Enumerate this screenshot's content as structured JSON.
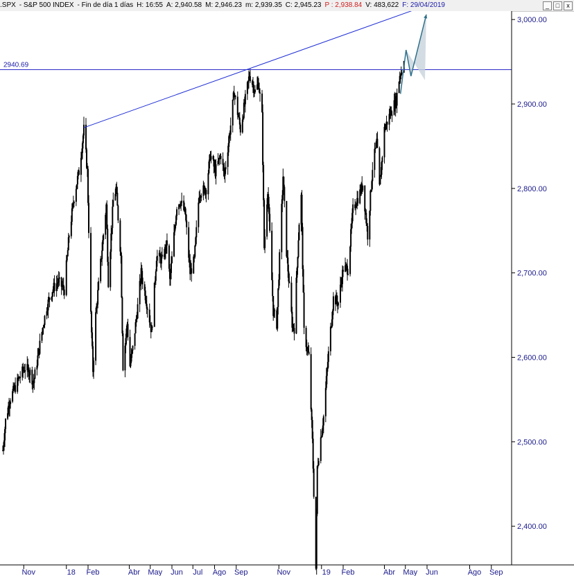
{
  "header": {
    "symbol": ".SPX",
    "name": "- S&P 500 INDEX",
    "period": "- Fin de día 1 días",
    "h": "H: 16:55",
    "a": "A: 2,940.58",
    "m": "M: 2,946.23",
    "mlow": "m: 2,939.35",
    "c": "C: 2,945.23",
    "p": "P : 2,938.84",
    "v": "V: 483,622",
    "f": "F: 29/04/2019"
  },
  "window_buttons": {
    "minimize": "_",
    "maximize": "□",
    "close": "x"
  },
  "colors": {
    "candles": "#000000",
    "axis": "#1a1a8c",
    "trendline": "#1f2fd6",
    "horizontal_line": "#2a2ac8",
    "projection": "#2e6f8a",
    "projection_fill": "#c8d3dc"
  },
  "chart_data": {
    "type": "candlestick",
    "title": ".SPX - S&P 500 INDEX",
    "ylim": [
      2355,
      3010
    ],
    "y_ticks": [
      {
        "v": 2400,
        "label": "2,400.00"
      },
      {
        "v": 2500,
        "label": "2,500.00"
      },
      {
        "v": 2600,
        "label": "2,600.00"
      },
      {
        "v": 2700,
        "label": "2,700.00"
      },
      {
        "v": 2800,
        "label": "2,800.00"
      },
      {
        "v": 2900,
        "label": "2,900.00"
      },
      {
        "v": 3000,
        "label": "3,000.00"
      }
    ],
    "x_range": [
      "2017-10-01",
      "2019-09-30"
    ],
    "x_ticks": [
      {
        "date": "2017-11-01",
        "label": "Nov"
      },
      {
        "date": "2018-01-01",
        "label": "18"
      },
      {
        "date": "2018-02-01",
        "label": "Feb"
      },
      {
        "date": "2018-04-01",
        "label": "Abr"
      },
      {
        "date": "2018-05-01",
        "label": "May"
      },
      {
        "date": "2018-06-01",
        "label": "Jun"
      },
      {
        "date": "2018-07-01",
        "label": "Jul"
      },
      {
        "date": "2018-08-01",
        "label": "Ago"
      },
      {
        "date": "2018-09-01",
        "label": "Sep"
      },
      {
        "date": "2018-11-01",
        "label": "Nov"
      },
      {
        "date": "2019-01-01",
        "label": "19"
      },
      {
        "date": "2019-02-01",
        "label": "Feb"
      },
      {
        "date": "2019-04-01",
        "label": "Abr"
      },
      {
        "date": "2019-05-01",
        "label": "May"
      },
      {
        "date": "2019-06-01",
        "label": "Jun"
      },
      {
        "date": "2019-08-01",
        "label": "Ago"
      },
      {
        "date": "2019-09-01",
        "label": "Sep"
      }
    ],
    "price_path": [
      [
        "2017-10-02",
        2490
      ],
      [
        "2017-10-06",
        2525
      ],
      [
        "2017-10-12",
        2550
      ],
      [
        "2017-10-20",
        2565
      ],
      [
        "2017-10-28",
        2580
      ],
      [
        "2017-11-03",
        2588
      ],
      [
        "2017-11-10",
        2582
      ],
      [
        "2017-11-15",
        2570
      ],
      [
        "2017-11-22",
        2605
      ],
      [
        "2017-11-28",
        2635
      ],
      [
        "2017-12-04",
        2660
      ],
      [
        "2017-12-12",
        2680
      ],
      [
        "2017-12-20",
        2690
      ],
      [
        "2017-12-29",
        2680
      ],
      [
        "2018-01-05",
        2745
      ],
      [
        "2018-01-12",
        2790
      ],
      [
        "2018-01-19",
        2820
      ],
      [
        "2018-01-26",
        2870
      ],
      [
        "2018-01-31",
        2820
      ],
      [
        "2018-02-05",
        2650
      ],
      [
        "2018-02-08",
        2585
      ],
      [
        "2018-02-12",
        2650
      ],
      [
        "2018-02-20",
        2720
      ],
      [
        "2018-02-27",
        2780
      ],
      [
        "2018-03-02",
        2690
      ],
      [
        "2018-03-09",
        2785
      ],
      [
        "2018-03-13",
        2800
      ],
      [
        "2018-03-20",
        2720
      ],
      [
        "2018-03-23",
        2590
      ],
      [
        "2018-03-29",
        2640
      ],
      [
        "2018-04-02",
        2590
      ],
      [
        "2018-04-06",
        2610
      ],
      [
        "2018-04-13",
        2660
      ],
      [
        "2018-04-18",
        2700
      ],
      [
        "2018-04-27",
        2660
      ],
      [
        "2018-05-03",
        2630
      ],
      [
        "2018-05-10",
        2720
      ],
      [
        "2018-05-18",
        2715
      ],
      [
        "2018-05-25",
        2735
      ],
      [
        "2018-05-29",
        2690
      ],
      [
        "2018-06-08",
        2780
      ],
      [
        "2018-06-13",
        2785
      ],
      [
        "2018-06-20",
        2770
      ],
      [
        "2018-06-27",
        2700
      ],
      [
        "2018-07-03",
        2715
      ],
      [
        "2018-07-10",
        2795
      ],
      [
        "2018-07-20",
        2800
      ],
      [
        "2018-07-26",
        2840
      ],
      [
        "2018-08-02",
        2820
      ],
      [
        "2018-08-10",
        2840
      ],
      [
        "2018-08-15",
        2815
      ],
      [
        "2018-08-24",
        2875
      ],
      [
        "2018-08-29",
        2915
      ],
      [
        "2018-09-07",
        2870
      ],
      [
        "2018-09-14",
        2905
      ],
      [
        "2018-09-20",
        2935
      ],
      [
        "2018-09-28",
        2915
      ],
      [
        "2018-10-03",
        2925
      ],
      [
        "2018-10-08",
        2885
      ],
      [
        "2018-10-11",
        2730
      ],
      [
        "2018-10-16",
        2800
      ],
      [
        "2018-10-24",
        2655
      ],
      [
        "2018-10-29",
        2640
      ],
      [
        "2018-11-07",
        2815
      ],
      [
        "2018-11-12",
        2725
      ],
      [
        "2018-11-20",
        2640
      ],
      [
        "2018-11-23",
        2635
      ],
      [
        "2018-11-30",
        2760
      ],
      [
        "2018-12-03",
        2790
      ],
      [
        "2018-12-07",
        2630
      ],
      [
        "2018-12-14",
        2600
      ],
      [
        "2018-12-19",
        2500
      ],
      [
        "2018-12-24",
        2350
      ],
      [
        "2018-12-26",
        2470
      ],
      [
        "2018-12-31",
        2505
      ],
      [
        "2019-01-04",
        2530
      ],
      [
        "2019-01-10",
        2595
      ],
      [
        "2019-01-18",
        2670
      ],
      [
        "2019-01-25",
        2665
      ],
      [
        "2019-02-01",
        2705
      ],
      [
        "2019-02-08",
        2705
      ],
      [
        "2019-02-15",
        2775
      ],
      [
        "2019-02-25",
        2795
      ],
      [
        "2019-03-01",
        2805
      ],
      [
        "2019-03-08",
        2745
      ],
      [
        "2019-03-15",
        2825
      ],
      [
        "2019-03-21",
        2855
      ],
      [
        "2019-03-25",
        2800
      ],
      [
        "2019-04-01",
        2870
      ],
      [
        "2019-04-10",
        2890
      ],
      [
        "2019-04-18",
        2905
      ],
      [
        "2019-04-23",
        2935
      ],
      [
        "2019-04-29",
        2945
      ]
    ],
    "trendline": [
      [
        "2018-01-26",
        2872
      ],
      [
        "2018-09-21",
        2940
      ],
      [
        "2019-06-05",
        3018
      ]
    ],
    "horizontal_line": {
      "value": 2940.69,
      "label": "2940.69"
    },
    "projection": [
      [
        "2019-04-24",
        2912
      ],
      [
        "2019-05-02",
        2964
      ],
      [
        "2019-05-09",
        2933
      ],
      [
        "2019-05-31",
        3006
      ]
    ]
  }
}
